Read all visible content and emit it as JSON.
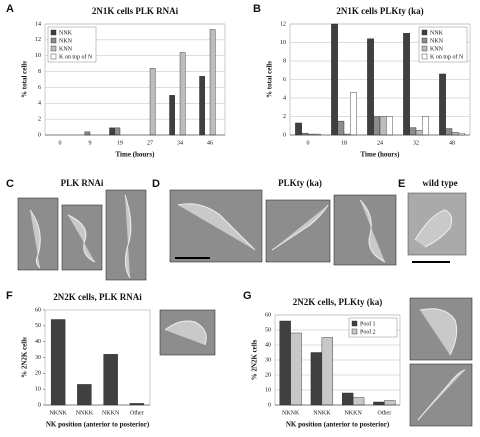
{
  "panels": [
    "A",
    "B",
    "C",
    "D",
    "E",
    "F",
    "G"
  ],
  "captions": [
    "PLK RNAi",
    "PLKty (ka)",
    "wild type"
  ],
  "chart_data": [
    {
      "type": "bar",
      "title": "2N1K cells PLK RNAi",
      "x_label": "Time (hours)",
      "y_label": "% total cells",
      "categories": [
        "0",
        "9",
        "19",
        "27",
        "34",
        "46"
      ],
      "series": [
        {
          "name": "NNK",
          "color": "#404040",
          "values": [
            0,
            0,
            0.9,
            0,
            5,
            7.4
          ]
        },
        {
          "name": "NKN",
          "color": "#8c8c8c",
          "values": [
            0,
            0.4,
            0.9,
            0,
            0,
            0
          ]
        },
        {
          "name": "KNN",
          "color": "#bdbdbd",
          "values": [
            0,
            0,
            0,
            8.4,
            10.4,
            13.3
          ]
        },
        {
          "name": "K on top of N",
          "color": "#ffffff",
          "values": [
            0,
            0,
            0,
            0,
            0,
            0
          ]
        }
      ],
      "ylim": [
        0,
        14
      ],
      "yticks": [
        0,
        2,
        4,
        6,
        8,
        10,
        12,
        14
      ],
      "grid": true,
      "legend": "upper left"
    },
    {
      "type": "bar",
      "title": "2N1K cells PLKty (ka)",
      "x_label": "Time (hours)",
      "y_label": "% total cells",
      "categories": [
        "0",
        "18",
        "24",
        "32",
        "48"
      ],
      "series": [
        {
          "name": "NNK",
          "color": "#404040",
          "values": [
            1.3,
            12,
            10.4,
            11,
            6.6
          ]
        },
        {
          "name": "NKN",
          "color": "#8c8c8c",
          "values": [
            0.2,
            1.5,
            2,
            0.8,
            0.7
          ]
        },
        {
          "name": "KNN",
          "color": "#bdbdbd",
          "values": [
            0.1,
            0.1,
            2,
            0.5,
            0.3
          ]
        },
        {
          "name": "K on top of N",
          "color": "#ffffff",
          "values": [
            0.1,
            4.6,
            2,
            2,
            0.2
          ]
        }
      ],
      "ylim": [
        0,
        12
      ],
      "yticks": [
        0,
        2,
        4,
        6,
        8,
        10,
        12
      ],
      "grid": true,
      "legend": "upper right"
    },
    {
      "type": "bar",
      "title": "2N2K cells, PLK RNAi",
      "x_label": "NK position (anterior to posterior)",
      "y_label": "% 2N2K cells",
      "categories": [
        "NKNK",
        "NNKK",
        "NKKN",
        "Other"
      ],
      "series": [
        {
          "color": "#404040",
          "values": [
            54,
            13,
            32,
            1
          ]
        }
      ],
      "ylim": [
        0,
        60
      ],
      "yticks": [
        0,
        10,
        20,
        30,
        40,
        50,
        60
      ],
      "grid": false
    },
    {
      "type": "bar",
      "title": "2N2K cells, PLKty (ka)",
      "x_label": "NK position (anterior to posterior)",
      "y_label": "% 2N2K cells",
      "categories": [
        "NKNK",
        "NNKK",
        "NKKN",
        "Other"
      ],
      "series": [
        {
          "name": "Pool 1",
          "color": "#404040",
          "values": [
            56,
            35,
            8,
            2
          ]
        },
        {
          "name": "Pool 2",
          "color": "#c8c8c8",
          "values": [
            48,
            45,
            5,
            3
          ]
        }
      ],
      "ylim": [
        0,
        60
      ],
      "yticks": [
        0,
        10,
        20,
        30,
        40,
        50,
        60
      ],
      "grid": true,
      "legend": "upper right"
    }
  ]
}
